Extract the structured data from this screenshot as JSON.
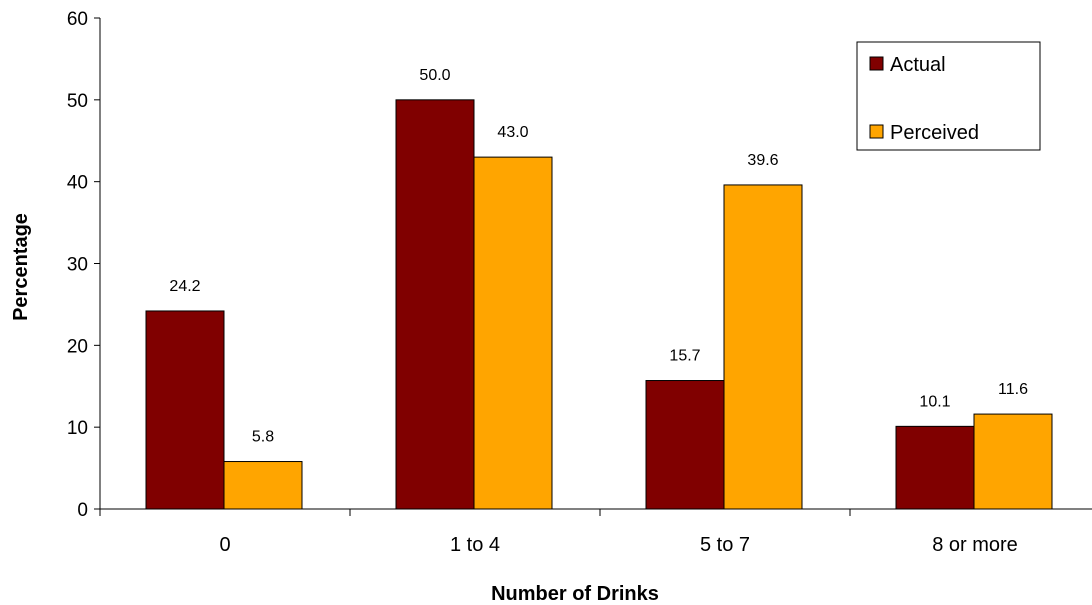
{
  "chart_data": {
    "type": "bar",
    "categories": [
      "0",
      "1 to 4",
      "5 to 7",
      "8 or more"
    ],
    "series": [
      {
        "name": "Actual",
        "values": [
          24.2,
          50.0,
          15.7,
          10.1
        ],
        "labels": [
          "24.2",
          "50.0",
          "15.7",
          "10.1"
        ],
        "color": "#800000"
      },
      {
        "name": "Perceived",
        "values": [
          5.8,
          43.0,
          39.6,
          11.6
        ],
        "labels": [
          "5.8",
          "43.0",
          "39.6",
          "11.6"
        ],
        "color": "#FFA500"
      }
    ],
    "xlabel": "Number of Drinks",
    "ylabel": "Percentage",
    "ylim": [
      0,
      60
    ],
    "yticks": [
      "0",
      "10",
      "20",
      "30",
      "40",
      "50",
      "60"
    ],
    "grid": false,
    "legend": "top-right"
  }
}
